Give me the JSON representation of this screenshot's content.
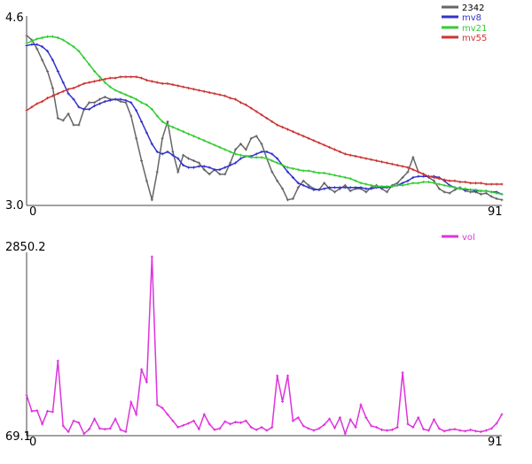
{
  "chart_data": [
    {
      "type": "line",
      "y_top_label": "4.6",
      "y_bottom_label": "3.0",
      "x_start_label": "0",
      "x_end_label": "91",
      "xlim": [
        0,
        91
      ],
      "ylim": [
        3.0,
        4.6
      ],
      "legend_position": "top-right",
      "series": [
        {
          "name": "2342",
          "color": "#666666",
          "values": [
            4.52,
            4.48,
            4.4,
            4.3,
            4.2,
            4.05,
            3.78,
            3.76,
            3.82,
            3.72,
            3.72,
            3.86,
            3.92,
            3.92,
            3.95,
            3.97,
            3.95,
            3.95,
            3.93,
            3.92,
            3.8,
            3.6,
            3.4,
            3.22,
            3.05,
            3.3,
            3.6,
            3.75,
            3.48,
            3.3,
            3.45,
            3.42,
            3.4,
            3.38,
            3.32,
            3.28,
            3.32,
            3.28,
            3.28,
            3.38,
            3.5,
            3.55,
            3.5,
            3.6,
            3.62,
            3.55,
            3.42,
            3.3,
            3.22,
            3.15,
            3.05,
            3.06,
            3.16,
            3.22,
            3.18,
            3.15,
            3.14,
            3.2,
            3.15,
            3.12,
            3.15,
            3.18,
            3.13,
            3.15,
            3.15,
            3.12,
            3.16,
            3.18,
            3.15,
            3.12,
            3.18,
            3.2,
            3.25,
            3.3,
            3.43,
            3.3,
            3.28,
            3.25,
            3.22,
            3.15,
            3.12,
            3.11,
            3.14,
            3.16,
            3.13,
            3.12,
            3.12,
            3.1,
            3.11,
            3.08,
            3.06,
            3.05
          ]
        },
        {
          "name": "mv8",
          "color": "#3333cc",
          "values": [
            4.43,
            4.44,
            4.44,
            4.42,
            4.38,
            4.3,
            4.2,
            4.1,
            4.0,
            3.95,
            3.88,
            3.86,
            3.86,
            3.89,
            3.91,
            3.93,
            3.94,
            3.95,
            3.95,
            3.94,
            3.92,
            3.85,
            3.75,
            3.65,
            3.55,
            3.48,
            3.46,
            3.48,
            3.45,
            3.42,
            3.36,
            3.34,
            3.34,
            3.35,
            3.35,
            3.34,
            3.32,
            3.32,
            3.34,
            3.36,
            3.38,
            3.42,
            3.44,
            3.44,
            3.46,
            3.48,
            3.48,
            3.46,
            3.42,
            3.36,
            3.3,
            3.25,
            3.2,
            3.18,
            3.16,
            3.14,
            3.14,
            3.15,
            3.16,
            3.16,
            3.16,
            3.16,
            3.16,
            3.16,
            3.16,
            3.15,
            3.15,
            3.16,
            3.16,
            3.16,
            3.17,
            3.18,
            3.2,
            3.22,
            3.25,
            3.26,
            3.26,
            3.26,
            3.26,
            3.25,
            3.22,
            3.18,
            3.16,
            3.15,
            3.14,
            3.14,
            3.13,
            3.13,
            3.13,
            3.12,
            3.12,
            3.1
          ]
        },
        {
          "name": "mv21",
          "color": "#33cc33",
          "values": [
            4.45,
            4.47,
            4.49,
            4.5,
            4.51,
            4.51,
            4.5,
            4.48,
            4.45,
            4.42,
            4.38,
            4.32,
            4.26,
            4.2,
            4.15,
            4.1,
            4.06,
            4.03,
            4.01,
            3.99,
            3.97,
            3.95,
            3.92,
            3.9,
            3.86,
            3.8,
            3.75,
            3.72,
            3.7,
            3.68,
            3.66,
            3.64,
            3.62,
            3.6,
            3.58,
            3.56,
            3.54,
            3.52,
            3.5,
            3.48,
            3.46,
            3.45,
            3.44,
            3.43,
            3.43,
            3.43,
            3.42,
            3.4,
            3.38,
            3.36,
            3.34,
            3.33,
            3.32,
            3.31,
            3.31,
            3.3,
            3.29,
            3.29,
            3.28,
            3.27,
            3.26,
            3.25,
            3.24,
            3.22,
            3.2,
            3.19,
            3.18,
            3.17,
            3.17,
            3.17,
            3.17,
            3.18,
            3.18,
            3.19,
            3.2,
            3.2,
            3.21,
            3.21,
            3.2,
            3.19,
            3.18,
            3.17,
            3.16,
            3.15,
            3.15,
            3.14,
            3.14,
            3.13,
            3.13,
            3.12,
            3.11,
            3.1
          ]
        },
        {
          "name": "mv55",
          "color": "#cc3333",
          "values": [
            3.85,
            3.88,
            3.91,
            3.93,
            3.96,
            3.98,
            4.0,
            4.02,
            4.04,
            4.05,
            4.07,
            4.09,
            4.1,
            4.11,
            4.12,
            4.13,
            4.14,
            4.14,
            4.15,
            4.15,
            4.15,
            4.15,
            4.14,
            4.12,
            4.11,
            4.1,
            4.09,
            4.09,
            4.08,
            4.07,
            4.06,
            4.05,
            4.04,
            4.03,
            4.02,
            4.01,
            4.0,
            3.99,
            3.98,
            3.96,
            3.95,
            3.92,
            3.9,
            3.87,
            3.84,
            3.81,
            3.78,
            3.75,
            3.72,
            3.7,
            3.68,
            3.66,
            3.64,
            3.62,
            3.6,
            3.58,
            3.56,
            3.54,
            3.52,
            3.5,
            3.48,
            3.46,
            3.45,
            3.44,
            3.43,
            3.42,
            3.41,
            3.4,
            3.39,
            3.38,
            3.37,
            3.36,
            3.35,
            3.34,
            3.32,
            3.3,
            3.28,
            3.26,
            3.25,
            3.24,
            3.23,
            3.22,
            3.22,
            3.21,
            3.21,
            3.2,
            3.2,
            3.2,
            3.19,
            3.19,
            3.19,
            3.19
          ]
        }
      ]
    },
    {
      "type": "line",
      "y_top_label": "2850.2",
      "y_bottom_label": "69.1",
      "x_start_label": "0",
      "x_end_label": "91",
      "xlim": [
        0,
        91
      ],
      "ylim": [
        69.1,
        2850.2
      ],
      "legend_position": "top-right",
      "series": [
        {
          "name": "vol",
          "color": "#dd33dd",
          "values": [
            700,
            450,
            460,
            250,
            450,
            440,
            1230,
            220,
            130,
            300,
            270,
            100,
            170,
            330,
            180,
            170,
            180,
            330,
            160,
            130,
            590,
            400,
            1100,
            900,
            2850,
            550,
            500,
            400,
            300,
            200,
            230,
            260,
            300,
            170,
            400,
            250,
            160,
            180,
            290,
            250,
            280,
            270,
            300,
            200,
            160,
            200,
            150,
            200,
            1000,
            600,
            1000,
            300,
            350,
            220,
            180,
            150,
            180,
            240,
            330,
            190,
            350,
            100,
            320,
            200,
            550,
            350,
            220,
            200,
            160,
            150,
            160,
            200,
            1050,
            250,
            200,
            350,
            170,
            150,
            320,
            180,
            140,
            160,
            170,
            150,
            140,
            160,
            140,
            130,
            150,
            180,
            260,
            400
          ]
        }
      ]
    }
  ]
}
